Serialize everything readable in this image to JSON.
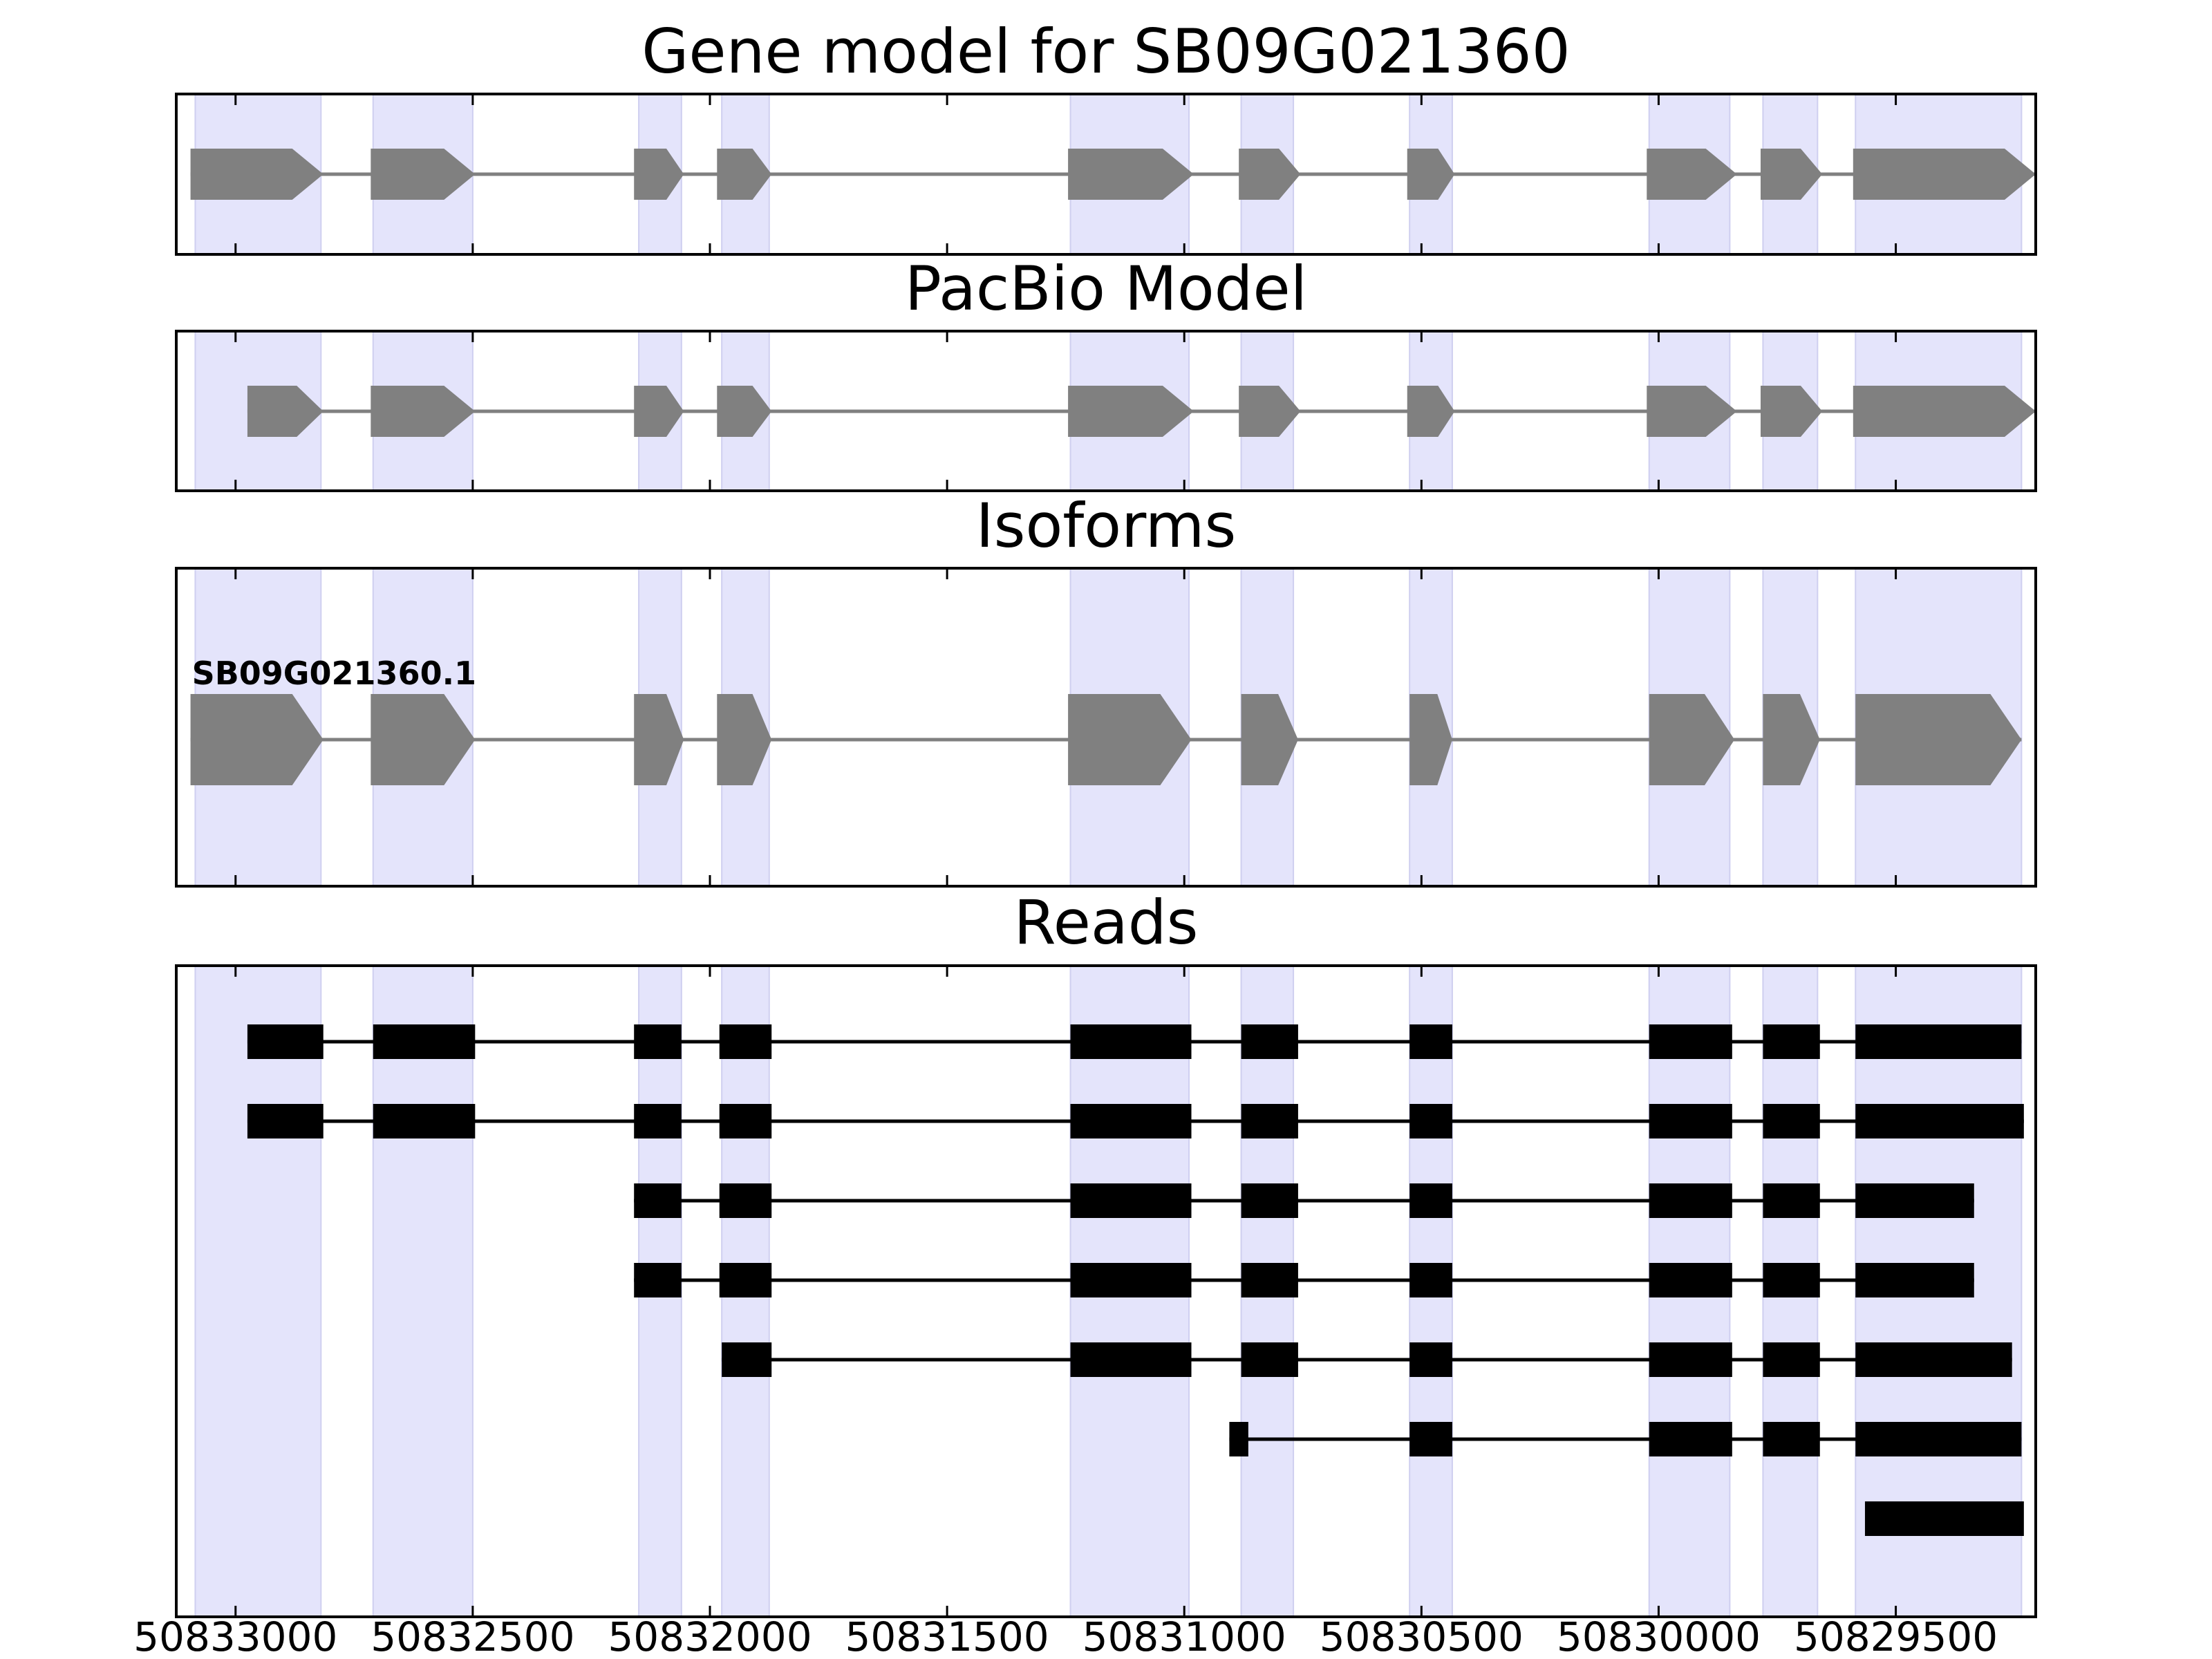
{
  "colors": {
    "exon_band": "#e4e4fb",
    "exon_band_edge": "#cfcff0",
    "gene_feature": "#808080",
    "read": "#000000",
    "frame": "#000000",
    "background": "#ffffff"
  },
  "panels": [
    {
      "id": "gene-model",
      "title": "Gene model for SB09G021360"
    },
    {
      "id": "pacbio-model",
      "title": "PacBio Model"
    },
    {
      "id": "isoforms",
      "title": "Isoforms"
    },
    {
      "id": "reads",
      "title": "Reads"
    }
  ],
  "chart_data": {
    "type": "gene-structure",
    "strand": "-",
    "x_axis": {
      "xlim": [
        50833125,
        50829205
      ],
      "ticks": [
        50833000,
        50832500,
        50832000,
        50831500,
        50831000,
        50830500,
        50830000,
        50829500
      ],
      "tick_labels": [
        "50833000",
        "50832500",
        "50832000",
        "50831500",
        "50831000",
        "50830500",
        "50830000",
        "50829500"
      ]
    },
    "exon_bands": [
      [
        50833085,
        50832820
      ],
      [
        50832710,
        50832500
      ],
      [
        50832150,
        50832060
      ],
      [
        50831975,
        50831875
      ],
      [
        50831240,
        50830990
      ],
      [
        50830880,
        50830770
      ],
      [
        50830525,
        50830435
      ],
      [
        50830020,
        50829850
      ],
      [
        50829780,
        50829665
      ],
      [
        50829585,
        50829235
      ]
    ],
    "gene_model": {
      "exons": [
        [
          50833095,
          50832815
        ],
        [
          50832715,
          50832495
        ],
        [
          50832160,
          50832055
        ],
        [
          50831985,
          50831870
        ],
        [
          50831245,
          50830980
        ],
        [
          50830885,
          50830755
        ],
        [
          50830530,
          50830430
        ],
        [
          50830025,
          50829835
        ],
        [
          50829785,
          50829655
        ],
        [
          50829590,
          50829205
        ]
      ]
    },
    "pacbio_model": {
      "exons": [
        [
          50832975,
          50832815
        ],
        [
          50832715,
          50832495
        ],
        [
          50832160,
          50832055
        ],
        [
          50831985,
          50831870
        ],
        [
          50831245,
          50830980
        ],
        [
          50830885,
          50830755
        ],
        [
          50830530,
          50830430
        ],
        [
          50830025,
          50829835
        ],
        [
          50829785,
          50829655
        ],
        [
          50829590,
          50829205
        ]
      ]
    },
    "isoforms": [
      {
        "name": "SB09G021360.1",
        "exons": [
          [
            50833095,
            50832815
          ],
          [
            50832715,
            50832495
          ],
          [
            50832160,
            50832055
          ],
          [
            50831985,
            50831870
          ],
          [
            50831245,
            50830985
          ],
          [
            50830880,
            50830760
          ],
          [
            50830525,
            50830435
          ],
          [
            50830020,
            50829840
          ],
          [
            50829780,
            50829660
          ],
          [
            50829585,
            50829235
          ]
        ]
      }
    ],
    "reads": [
      {
        "exons": [
          [
            50832975,
            50832815
          ],
          [
            50832710,
            50832495
          ],
          [
            50832160,
            50832060
          ],
          [
            50831980,
            50831870
          ],
          [
            50831240,
            50830985
          ],
          [
            50830880,
            50830760
          ],
          [
            50830525,
            50830435
          ],
          [
            50830020,
            50829845
          ],
          [
            50829780,
            50829660
          ],
          [
            50829585,
            50829235
          ]
        ]
      },
      {
        "exons": [
          [
            50832975,
            50832815
          ],
          [
            50832710,
            50832495
          ],
          [
            50832160,
            50832060
          ],
          [
            50831980,
            50831870
          ],
          [
            50831240,
            50830985
          ],
          [
            50830880,
            50830760
          ],
          [
            50830525,
            50830435
          ],
          [
            50830020,
            50829845
          ],
          [
            50829780,
            50829660
          ],
          [
            50829585,
            50829230
          ]
        ]
      },
      {
        "exons": [
          [
            50832160,
            50832060
          ],
          [
            50831980,
            50831870
          ],
          [
            50831240,
            50830985
          ],
          [
            50830880,
            50830760
          ],
          [
            50830525,
            50830435
          ],
          [
            50830020,
            50829845
          ],
          [
            50829780,
            50829660
          ],
          [
            50829585,
            50829335
          ]
        ]
      },
      {
        "exons": [
          [
            50832160,
            50832060
          ],
          [
            50831980,
            50831870
          ],
          [
            50831240,
            50830985
          ],
          [
            50830880,
            50830760
          ],
          [
            50830525,
            50830435
          ],
          [
            50830020,
            50829845
          ],
          [
            50829780,
            50829660
          ],
          [
            50829585,
            50829335
          ]
        ]
      },
      {
        "exons": [
          [
            50831975,
            50831870
          ],
          [
            50831240,
            50830985
          ],
          [
            50830880,
            50830760
          ],
          [
            50830525,
            50830435
          ],
          [
            50830020,
            50829845
          ],
          [
            50829780,
            50829660
          ],
          [
            50829585,
            50829255
          ]
        ]
      },
      {
        "exons": [
          [
            50830905,
            50830865
          ],
          [
            50830525,
            50830435
          ],
          [
            50830020,
            50829845
          ],
          [
            50829780,
            50829660
          ],
          [
            50829585,
            50829235
          ]
        ]
      },
      {
        "exons": [
          [
            50829565,
            50829230
          ]
        ]
      }
    ]
  }
}
